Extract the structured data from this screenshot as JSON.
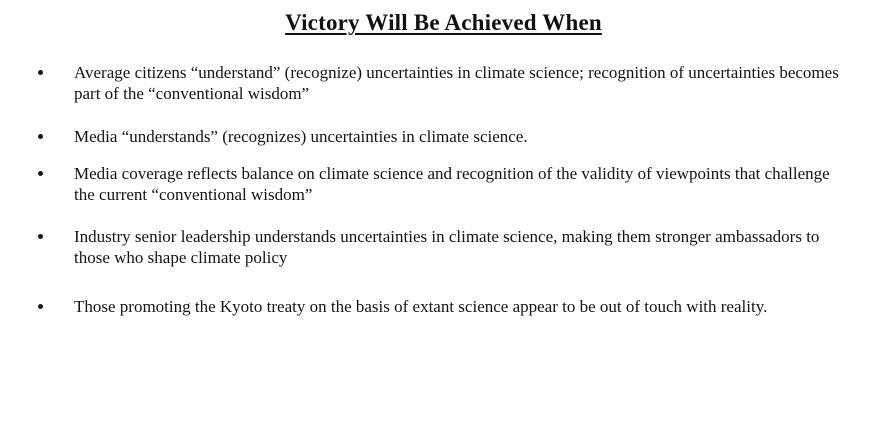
{
  "document": {
    "title": "Victory Will Be Achieved When",
    "bullets": [
      "Average citizens “understand” (recognize) uncertainties in climate science; recognition of uncertainties becomes part of the “conventional wisdom”",
      "Media “understands” (recognizes) uncertainties in climate science.",
      "Media coverage reflects balance on climate science and recognition of the validity of viewpoints that challenge the current “conventional wisdom”",
      "Industry senior leadership understands uncertainties in climate science, making them stronger ambassadors to those who shape climate policy",
      "Those promoting the Kyoto treaty on the basis of extant science appear to be out of touch with reality."
    ]
  }
}
